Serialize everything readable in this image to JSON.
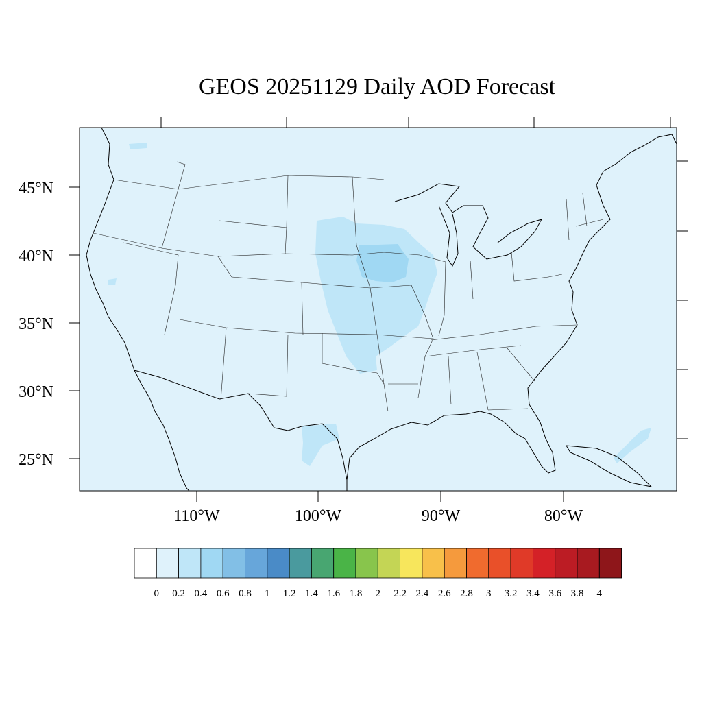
{
  "title": "GEOS 20251129 Daily AOD Forecast",
  "map": {
    "projection": "lat-lon",
    "background_color": "#dff2fb",
    "lat_ticks": [
      "45°N",
      "40°N",
      "35°N",
      "30°N",
      "25°N"
    ],
    "lon_ticks": [
      "110°W",
      "100°W",
      "90°W",
      "80°W"
    ]
  },
  "colorbar": {
    "labels": [
      "0",
      "0.2",
      "0.4",
      "0.6",
      "0.8",
      "1",
      "1.2",
      "1.4",
      "1.6",
      "1.8",
      "2",
      "2.2",
      "2.4",
      "2.6",
      "2.8",
      "3",
      "3.2",
      "3.4",
      "3.6",
      "3.8",
      "4"
    ],
    "colors": [
      "#ffffff",
      "#dff2fb",
      "#bfe6f8",
      "#a0d8f3",
      "#82bfe6",
      "#67a6da",
      "#4a8bc7",
      "#4a9a9e",
      "#48a671",
      "#4ab447",
      "#88c54c",
      "#c4d555",
      "#f7e65c",
      "#f8c04a",
      "#f59a3d",
      "#f06b2e",
      "#e95029",
      "#e03a28",
      "#d42127",
      "#bc1c24",
      "#a81a20",
      "#8e161a"
    ]
  },
  "aod_regions": [
    {
      "name": "Great Plains plume",
      "aod_level": "0.2-0.4",
      "color": "#bfe6f8"
    },
    {
      "name": "Iowa core",
      "aod_level": "0.4-0.6",
      "color": "#a0d8f3"
    },
    {
      "name": "South Texas",
      "aod_level": "0.2-0.4",
      "color": "#bfe6f8"
    },
    {
      "name": "Bahamas",
      "aod_level": "0.2-0.4",
      "color": "#bfe6f8"
    }
  ]
}
